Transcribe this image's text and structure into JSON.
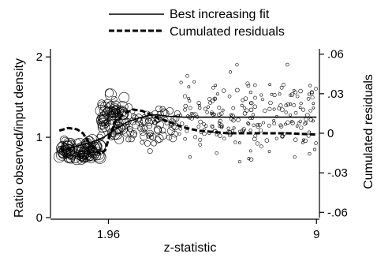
{
  "chart_data": {
    "type": "scatter",
    "xlabel": "z-statistic",
    "ylabel": "Ratio observed/input density",
    "y2label": "Cumulated residuals",
    "xlim": [
      0,
      9.1
    ],
    "ylim": [
      0,
      2.1
    ],
    "y2lim": [
      -0.064,
      0.064
    ],
    "x_ticks": [
      {
        "value": 1.96,
        "label": "1.96"
      },
      {
        "value": 9,
        "label": "9"
      }
    ],
    "y_ticks": [
      {
        "value": 0,
        "label": "0"
      },
      {
        "value": 1,
        "label": "1"
      },
      {
        "value": 2,
        "label": "2"
      }
    ],
    "y2_ticks": [
      {
        "value": 0.06,
        "label": ".06"
      },
      {
        "value": 0.03,
        "label": ".03"
      },
      {
        "value": 0,
        "label": "0"
      },
      {
        "value": -0.03,
        "label": "-.03"
      },
      {
        "value": -0.06,
        "label": "-.06"
      }
    ],
    "legend": {
      "position": "top",
      "entries": [
        {
          "label": "Best increasing fit",
          "style": "solid"
        },
        {
          "label": "Cumulated residuals",
          "style": "dashed"
        }
      ]
    },
    "series": [
      {
        "name": "Best increasing fit",
        "axis": "left",
        "style": "solid",
        "x": [
          0.3,
          1.0,
          1.4,
          1.8,
          2.2,
          2.6,
          3.0,
          3.3,
          3.6,
          4.0,
          4.5,
          5.0,
          6.0,
          7.0,
          8.0,
          9.0
        ],
        "y": [
          0.82,
          0.9,
          0.94,
          1.0,
          1.1,
          1.19,
          1.24,
          1.27,
          1.28,
          1.26,
          1.25,
          1.25,
          1.25,
          1.25,
          1.25,
          1.25
        ]
      },
      {
        "name": "Cumulated residuals",
        "axis": "right",
        "style": "dashed",
        "x": [
          0.3,
          0.6,
          0.9,
          1.1,
          1.3,
          1.5,
          1.7,
          1.85,
          2.0,
          2.2,
          2.5,
          2.8,
          3.1,
          3.4,
          3.7,
          4.0,
          4.3,
          4.6,
          5.0,
          5.5,
          6.0,
          7.0,
          8.0,
          9.0
        ],
        "y": [
          0.002,
          0.004,
          0.003,
          0.0,
          -0.007,
          -0.012,
          -0.016,
          -0.013,
          -0.002,
          0.009,
          0.015,
          0.018,
          0.017,
          0.014,
          0.011,
          0.009,
          0.006,
          0.004,
          0.002,
          0.001,
          0.0,
          0.0,
          0.0,
          -0.001
        ]
      }
    ],
    "scatter_clusters": [
      {
        "xmin": 0.3,
        "xmax": 1.7,
        "ymean": 0.83,
        "ysd": 0.1,
        "n": 95,
        "rmin": 4,
        "rmax": 8
      },
      {
        "xmin": 1.7,
        "xmax": 2.5,
        "ymean": 1.27,
        "ysd": 0.17,
        "n": 75,
        "rmin": 3.5,
        "rmax": 7.5
      },
      {
        "xmin": 2.5,
        "xmax": 4.3,
        "ymean": 1.15,
        "ysd": 0.2,
        "n": 75,
        "rmin": 2.5,
        "rmax": 5
      },
      {
        "xmin": 4.3,
        "xmax": 9.0,
        "ymean": 1.23,
        "ysd": 0.33,
        "n": 210,
        "rmin": 1.5,
        "rmax": 2.5
      }
    ]
  }
}
